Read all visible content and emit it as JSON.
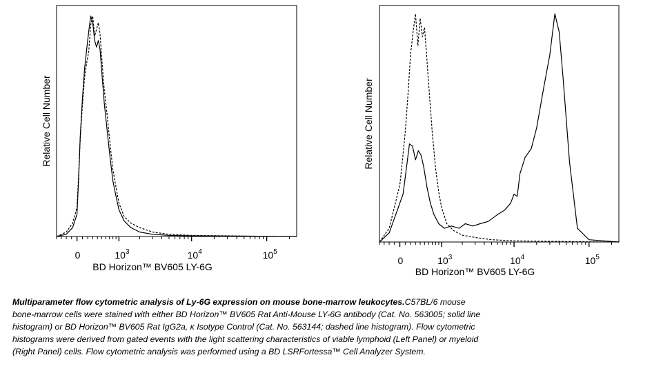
{
  "chart_data": [
    {
      "type": "line",
      "panel": "left",
      "ylabel": "Relative Cell Number",
      "xlabel": "BD Horizon™ BV605 LY-6G",
      "xscale": "biexponential",
      "xlim": [
        -400,
        250000
      ],
      "ylim": [
        0,
        100
      ],
      "x_ticks": [
        {
          "value": 0,
          "base": "0",
          "exp": ""
        },
        {
          "value": 1000,
          "base": "10",
          "exp": "3"
        },
        {
          "value": 10000,
          "base": "10",
          "exp": "4"
        },
        {
          "value": 100000,
          "base": "10",
          "exp": "5"
        }
      ],
      "series": [
        {
          "style": "solid",
          "x": [
            -400,
            -200,
            -80,
            0,
            30,
            60,
            100,
            140,
            180,
            220,
            260,
            300,
            340,
            380,
            420,
            460,
            500,
            560,
            640,
            720,
            800,
            900,
            1000,
            1200,
            1500,
            2000,
            3000,
            5000,
            10000,
            30000,
            100000,
            250000
          ],
          "y": [
            0,
            1,
            4,
            10,
            26,
            45,
            62,
            75,
            84,
            92,
            99,
            96,
            88,
            85,
            88,
            84,
            74,
            60,
            47,
            35,
            25,
            18,
            12,
            7,
            4,
            2,
            1,
            0.5,
            0.3,
            0.2,
            0.1,
            0
          ]
        },
        {
          "style": "dashed",
          "x": [
            -400,
            -200,
            -80,
            0,
            30,
            60,
            100,
            140,
            180,
            220,
            260,
            300,
            340,
            380,
            420,
            460,
            500,
            560,
            640,
            720,
            800,
            900,
            1000,
            1200,
            1500,
            2000,
            3000,
            5000,
            10000,
            30000,
            100000,
            250000
          ],
          "y": [
            0,
            2,
            6,
            13,
            28,
            44,
            59,
            71,
            78,
            83,
            95,
            99,
            90,
            93,
            96,
            91,
            80,
            66,
            54,
            41,
            30,
            22,
            15,
            9,
            6,
            4,
            2,
            1,
            0.5,
            0.3,
            0.1,
            0
          ]
        }
      ]
    },
    {
      "type": "line",
      "panel": "right",
      "ylabel": "Relative Cell Number",
      "xlabel": "BD Horizon™ BV605 LY-6G",
      "xscale": "biexponential",
      "xlim": [
        -400,
        250000
      ],
      "ylim": [
        0,
        100
      ],
      "x_ticks": [
        {
          "value": 0,
          "base": "0",
          "exp": ""
        },
        {
          "value": 1000,
          "base": "10",
          "exp": "3"
        },
        {
          "value": 10000,
          "base": "10",
          "exp": "4"
        },
        {
          "value": 100000,
          "base": "10",
          "exp": "5"
        }
      ],
      "series": [
        {
          "style": "solid",
          "x": [
            -400,
            -200,
            0,
            60,
            120,
            180,
            240,
            300,
            360,
            420,
            480,
            560,
            650,
            750,
            900,
            1100,
            1400,
            1800,
            2200,
            2800,
            3500,
            4500,
            6000,
            7500,
            9000,
            10000,
            11000,
            12000,
            14000,
            17000,
            20000,
            25000,
            30000,
            35000,
            40000,
            45000,
            55000,
            70000,
            100000,
            250000
          ],
          "y": [
            0,
            4,
            17,
            21,
            32,
            43,
            42,
            36,
            40,
            38,
            33,
            24,
            17,
            12,
            8,
            6,
            7,
            6,
            8,
            7,
            8,
            9,
            12,
            14,
            17,
            21,
            20,
            30,
            37,
            41,
            50,
            68,
            82,
            100,
            92,
            72,
            35,
            6,
            1,
            0
          ]
        },
        {
          "style": "dashed",
          "x": [
            -400,
            -200,
            0,
            50,
            100,
            150,
            200,
            250,
            300,
            350,
            400,
            450,
            500,
            550,
            600,
            700,
            800,
            900,
            1000,
            1200,
            1500,
            2000,
            3000,
            5000,
            10000,
            30000,
            100000,
            250000
          ],
          "y": [
            0,
            6,
            25,
            36,
            48,
            64,
            82,
            92,
            100,
            86,
            98,
            90,
            94,
            82,
            70,
            48,
            32,
            22,
            15,
            8,
            5,
            3,
            2,
            1,
            0.5,
            0.3,
            0.1,
            0
          ]
        }
      ]
    }
  ],
  "caption": {
    "bold": "Multiparameter flow cytometric analysis of Ly-6G expression on mouse bone-marrow leukocytes.",
    "lines": [
      "C57BL/6 mouse",
      "bone-marrow cells were stained with either BD Horizon™ BV605 Rat Anti-Mouse LY-6G antibody (Cat. No. 563005; solid line",
      "histogram) or BD Horizon™ BV605 Rat IgG2a, κ Isotype Control (Cat. No. 563144; dashed line histogram). Flow cytometric",
      "histograms were derived from gated events with the light scattering characteristics of viable lymphoid (Left Panel) or myeloid",
      "(Right Panel) cells. Flow cytometric analysis was performed using a BD LSRFortessa™ Cell Analyzer System."
    ]
  }
}
